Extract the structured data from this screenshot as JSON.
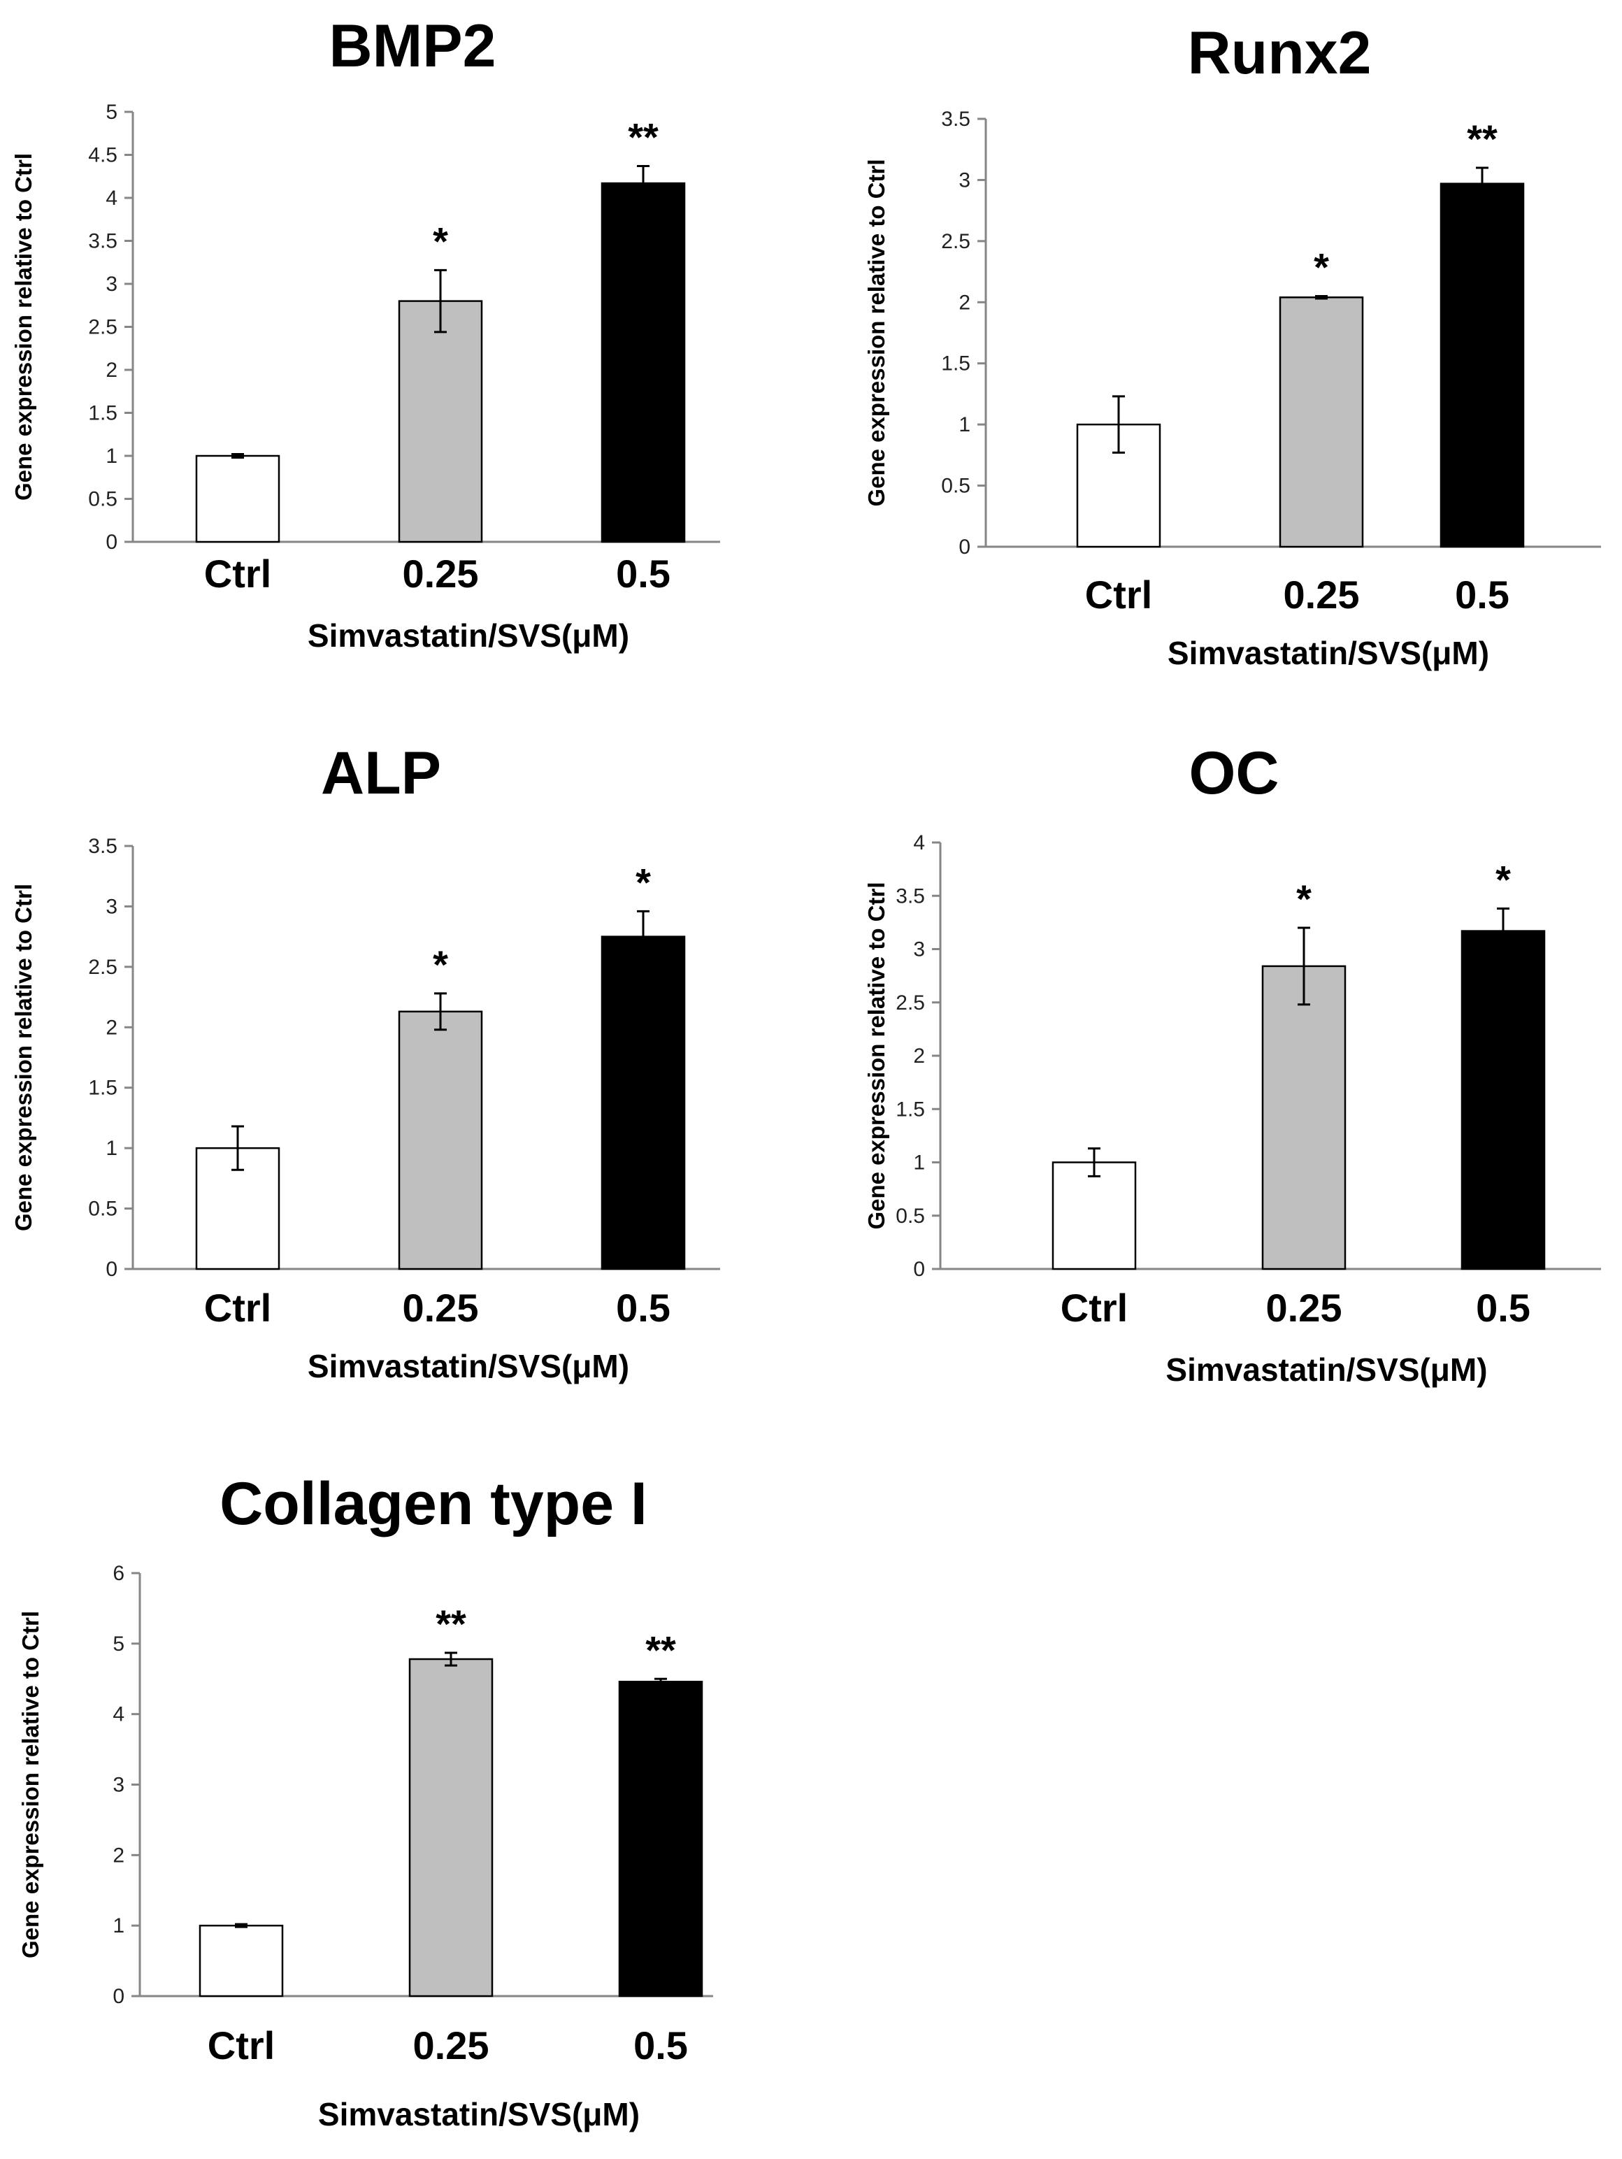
{
  "colors": {
    "ctrl": "#ffffff",
    "low": "#bfbfbf",
    "high": "#000000",
    "axis": "#868686",
    "outline": "#000000"
  },
  "chart_data": [
    {
      "type": "bar",
      "title": "BMP2",
      "categories": [
        "Ctrl",
        "0.25",
        "0.5"
      ],
      "values": [
        1.0,
        2.8,
        4.17
      ],
      "errors": [
        0.02,
        0.36,
        0.2
      ],
      "annotations": [
        "",
        "*",
        "**"
      ],
      "xlabel": "Simvastatin/SVS(μM)",
      "ylabel": "Gene expression relative to Ctrl",
      "ylim": [
        0,
        5
      ],
      "yticks": [
        0,
        0.5,
        1,
        1.5,
        2,
        2.5,
        3,
        3.5,
        4,
        4.5,
        5
      ],
      "yticklabels": [
        "0",
        "0.5",
        "1",
        "1.5",
        "2",
        "2.5",
        "3",
        "3.5",
        "4",
        "4.5",
        "5"
      ],
      "grid": false
    },
    {
      "type": "bar",
      "title": "Runx2",
      "categories": [
        "Ctrl",
        "0.25",
        "0.5"
      ],
      "values": [
        1.0,
        2.04,
        2.97
      ],
      "errors": [
        0.23,
        0.01,
        0.13
      ],
      "annotations": [
        "",
        "*",
        "**"
      ],
      "xlabel": "Simvastatin/SVS(μM)",
      "ylabel": "Gene expression relative to Ctrl",
      "ylim": [
        0,
        3.5
      ],
      "yticks": [
        0,
        0.5,
        1,
        1.5,
        2,
        2.5,
        3,
        3.5
      ],
      "yticklabels": [
        "0",
        "0.5",
        "1",
        "1.5",
        "2",
        "2.5",
        "3",
        "3.5"
      ],
      "grid": false
    },
    {
      "type": "bar",
      "title": "ALP",
      "categories": [
        "Ctrl",
        "0.25",
        "0.5"
      ],
      "values": [
        1.0,
        2.13,
        2.75
      ],
      "errors": [
        0.18,
        0.15,
        0.21
      ],
      "annotations": [
        "",
        "*",
        "*"
      ],
      "xlabel": "Simvastatin/SVS(μM)",
      "ylabel": "Gene expression relative to Ctrl",
      "ylim": [
        0,
        3.5
      ],
      "yticks": [
        0,
        0.5,
        1,
        1.5,
        2,
        2.5,
        3,
        3.5
      ],
      "yticklabels": [
        "0",
        "0.5",
        "1",
        "1.5",
        "2",
        "2.5",
        "3",
        "3.5"
      ],
      "grid": false
    },
    {
      "type": "bar",
      "title": "OC",
      "categories": [
        "Ctrl",
        "0.25",
        "0.5"
      ],
      "values": [
        1.0,
        2.84,
        3.17
      ],
      "errors": [
        0.13,
        0.36,
        0.21
      ],
      "annotations": [
        "",
        "*",
        "*"
      ],
      "xlabel": "Simvastatin/SVS(μM)",
      "ylabel": "Gene expression relative to Ctrl",
      "ylim": [
        0,
        4
      ],
      "yticks": [
        0,
        0.5,
        1,
        1.5,
        2,
        2.5,
        3,
        3.5,
        4
      ],
      "yticklabels": [
        "0",
        "0.5",
        "1",
        "1.5",
        "2",
        "2.5",
        "3",
        "3.5",
        "4"
      ],
      "grid": false
    },
    {
      "type": "bar",
      "title": "Collagen type I",
      "categories": [
        "Ctrl",
        "0.25",
        "0.5"
      ],
      "values": [
        1.0,
        4.78,
        4.46
      ],
      "errors": [
        0.02,
        0.09,
        0.04
      ],
      "annotations": [
        "",
        "**",
        "**"
      ],
      "xlabel": "Simvastatin/SVS(μM)",
      "ylabel": "Gene expression relative to Ctrl",
      "ylim": [
        0,
        6
      ],
      "yticks": [
        0,
        1,
        2,
        3,
        4,
        5,
        6
      ],
      "yticklabels": [
        "0",
        "1",
        "2",
        "3",
        "4",
        "5",
        "6"
      ],
      "grid": false
    }
  ]
}
